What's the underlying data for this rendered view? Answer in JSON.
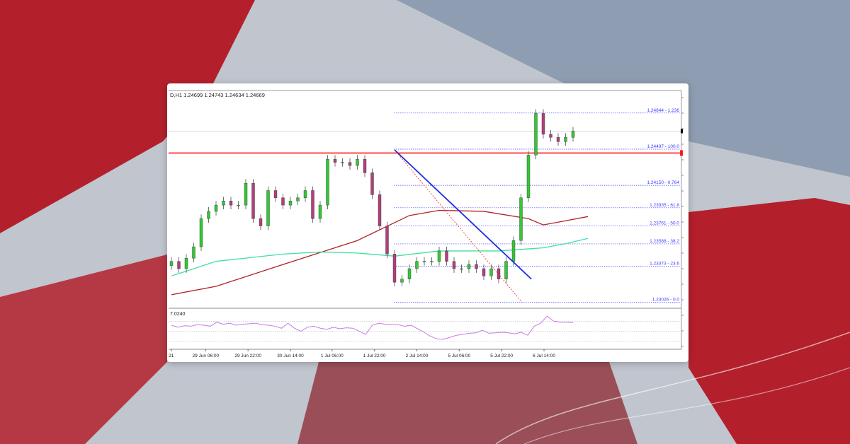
{
  "background": {
    "flag_red": "#b3202c",
    "sky": "#8e9db1"
  },
  "chart_data": {
    "type": "candlestick",
    "header": "D,H1  1.24699 1.24743 1.24634 1.24669",
    "ylim": [
      1.2297,
      1.2506
    ],
    "closes": [
      1.2342,
      1.2335,
      1.2345,
      1.2356,
      1.2383,
      1.239,
      1.2396,
      1.24,
      1.2396,
      1.2396,
      1.2417,
      1.2383,
      1.2376,
      1.241,
      1.2403,
      1.2396,
      1.24,
      1.2403,
      1.241,
      1.2383,
      1.2396,
      1.244,
      1.2437,
      1.2437,
      1.2434,
      1.244,
      1.2427,
      1.2406,
      1.2376,
      1.2349,
      1.2322,
      1.2325,
      1.2335,
      1.2342,
      1.2342,
      1.2342,
      1.2352,
      1.2342,
      1.2335,
      1.2335,
      1.2339,
      1.2335,
      1.2328,
      1.2335,
      1.2325,
      1.2342,
      1.2362,
      1.2403,
      1.2444,
      1.2484,
      1.2464,
      1.2461,
      1.2457,
      1.2461,
      1.2467
    ],
    "colors": {
      "up": "#32c832",
      "down": "#b0407a",
      "ma_slow": "#b22222",
      "ma_fast": "#40e0a0",
      "trendline": "#1a2ee6",
      "resistance": "#ff1a1a",
      "fib": "#4040ff",
      "rsi": "#c87ae6"
    },
    "ma_slow": [
      [
        0,
        1.231
      ],
      [
        6,
        1.2318
      ],
      [
        15,
        1.2339
      ],
      [
        25,
        1.2362
      ],
      [
        32,
        1.2386
      ],
      [
        36,
        1.2391
      ],
      [
        42,
        1.239
      ],
      [
        48,
        1.2383
      ],
      [
        50,
        1.2377
      ],
      [
        53,
        1.2381
      ],
      [
        56,
        1.2385
      ]
    ],
    "ma_fast": [
      [
        0,
        1.2328
      ],
      [
        6,
        1.2342
      ],
      [
        15,
        1.2349
      ],
      [
        20,
        1.2351
      ],
      [
        25,
        1.235
      ],
      [
        30,
        1.2347
      ],
      [
        36,
        1.2352
      ],
      [
        44,
        1.2352
      ],
      [
        50,
        1.2355
      ],
      [
        53,
        1.2359
      ],
      [
        56,
        1.2364
      ]
    ],
    "resistance_price": 1.2446,
    "current_price": 1.2467,
    "trendline": [
      [
        30,
        1.2449
      ],
      [
        48.4,
        1.2325
      ]
    ],
    "fib_diagonal": [
      [
        30,
        1.2449
      ],
      [
        47.1,
        1.2303
      ]
    ],
    "fib_levels": [
      {
        "price": 1.24844,
        "label": "1.24844 - 1.236"
      },
      {
        "price": 1.24497,
        "label": "1.24497 - 100.0"
      },
      {
        "price": 1.2415,
        "label": "1.24150 - 0.764"
      },
      {
        "price": 1.23935,
        "label": "1.23935 - 61.8"
      },
      {
        "price": 1.23761,
        "label": "1.23761 - 50.0"
      },
      {
        "price": 1.23588,
        "label": "1.23588 - 38.2"
      },
      {
        "price": 1.23373,
        "label": "1.23373 - 23.6"
      },
      {
        "price": 1.23026,
        "label": "1.23026 - 0.0"
      }
    ],
    "rsi_label": "7.0240",
    "rsi_ylim": [
      20,
      90
    ],
    "rsi_levels": [
      70,
      50,
      30
    ],
    "rsi": [
      62,
      58,
      61,
      60,
      63,
      62,
      60,
      68,
      64,
      66,
      62,
      64,
      65,
      66,
      63,
      62,
      60,
      56,
      66,
      56,
      50,
      58,
      60,
      56,
      54,
      58,
      55,
      57,
      56,
      50,
      44,
      62,
      66,
      64,
      64,
      63,
      60,
      62,
      55,
      48,
      40,
      35,
      34,
      38,
      42,
      44,
      46,
      47,
      52,
      46,
      47,
      48,
      47,
      45,
      48,
      42,
      60,
      66,
      80,
      70,
      68,
      68,
      67
    ],
    "x_ticks": [
      {
        "i": 0,
        "label": "21"
      },
      {
        "i": 4.6,
        "label": "29 Jun 06:00"
      },
      {
        "i": 10.3,
        "label": "29 Jun 22:00"
      },
      {
        "i": 16,
        "label": "30 Jun 14:00"
      },
      {
        "i": 21.6,
        "label": "1 Jul 06:00"
      },
      {
        "i": 27.3,
        "label": "1 Jul 22:00"
      },
      {
        "i": 33,
        "label": "2 Jul 14:00"
      },
      {
        "i": 38.7,
        "label": "5 Jul 06:00"
      },
      {
        "i": 44.4,
        "label": "5 Jul 22:00"
      },
      {
        "i": 50.1,
        "label": "6 Jul 14:00"
      }
    ]
  }
}
